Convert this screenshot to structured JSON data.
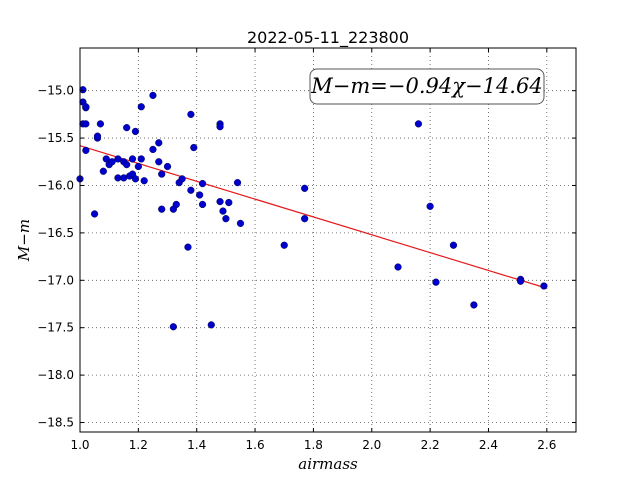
{
  "chart_data": {
    "type": "scatter",
    "title": "2022-05-11_223800",
    "xlabel": "airmass",
    "ylabel": "M−m",
    "xlim": [
      1.0,
      2.7
    ],
    "ylim": [
      -18.6,
      -14.55
    ],
    "y_inverted": true,
    "grid": true,
    "xticks": [
      1.0,
      1.2,
      1.4,
      1.6,
      1.8,
      2.0,
      2.2,
      2.4,
      2.6
    ],
    "xtick_labels": [
      "1.0",
      "1.2",
      "1.4",
      "1.6",
      "1.8",
      "2.0",
      "2.2",
      "2.4",
      "2.6"
    ],
    "yticks": [
      -15.0,
      -15.5,
      -16.0,
      -16.5,
      -17.0,
      -17.5,
      -18.0,
      -18.5
    ],
    "ytick_labels": [
      "−15.0",
      "−15.5",
      "−16.0",
      "−16.5",
      "−17.0",
      "−17.5",
      "−18.0",
      "−18.5"
    ],
    "annotation": "M−m=−0.94χ−14.64",
    "fit": {
      "slope": -0.94,
      "intercept": -14.64,
      "x_range": [
        1.0,
        2.59
      ],
      "color": "#e41a1c"
    },
    "point_color": "#0000cc",
    "points": [
      [
        1.0,
        -15.93
      ],
      [
        1.01,
        -15.12
      ],
      [
        1.01,
        -15.35
      ],
      [
        1.01,
        -14.99
      ],
      [
        1.02,
        -15.18
      ],
      [
        1.02,
        -15.35
      ],
      [
        1.02,
        -15.63
      ],
      [
        1.02,
        -15.17
      ],
      [
        1.05,
        -16.3
      ],
      [
        1.06,
        -15.5
      ],
      [
        1.06,
        -15.48
      ],
      [
        1.07,
        -15.35
      ],
      [
        1.08,
        -15.85
      ],
      [
        1.09,
        -15.72
      ],
      [
        1.1,
        -15.78
      ],
      [
        1.11,
        -15.75
      ],
      [
        1.13,
        -15.92
      ],
      [
        1.13,
        -15.72
      ],
      [
        1.15,
        -15.92
      ],
      [
        1.15,
        -15.75
      ],
      [
        1.16,
        -15.78
      ],
      [
        1.16,
        -15.39
      ],
      [
        1.17,
        -15.9
      ],
      [
        1.18,
        -15.88
      ],
      [
        1.18,
        -15.72
      ],
      [
        1.19,
        -15.43
      ],
      [
        1.19,
        -15.93
      ],
      [
        1.2,
        -15.8
      ],
      [
        1.21,
        -15.72
      ],
      [
        1.21,
        -15.17
      ],
      [
        1.22,
        -15.95
      ],
      [
        1.25,
        -15.62
      ],
      [
        1.25,
        -15.05
      ],
      [
        1.27,
        -15.75
      ],
      [
        1.27,
        -15.55
      ],
      [
        1.28,
        -16.25
      ],
      [
        1.28,
        -15.88
      ],
      [
        1.3,
        -15.8
      ],
      [
        1.32,
        -16.25
      ],
      [
        1.32,
        -17.49
      ],
      [
        1.33,
        -16.2
      ],
      [
        1.34,
        -15.97
      ],
      [
        1.35,
        -15.93
      ],
      [
        1.37,
        -16.65
      ],
      [
        1.38,
        -16.05
      ],
      [
        1.38,
        -15.25
      ],
      [
        1.39,
        -15.6
      ],
      [
        1.41,
        -16.1
      ],
      [
        1.42,
        -15.98
      ],
      [
        1.42,
        -16.2
      ],
      [
        1.45,
        -17.47
      ],
      [
        1.48,
        -15.35
      ],
      [
        1.48,
        -15.38
      ],
      [
        1.48,
        -16.17
      ],
      [
        1.49,
        -16.27
      ],
      [
        1.5,
        -16.35
      ],
      [
        1.51,
        -16.18
      ],
      [
        1.54,
        -15.97
      ],
      [
        1.55,
        -16.4
      ],
      [
        1.7,
        -16.63
      ],
      [
        1.77,
        -16.03
      ],
      [
        1.77,
        -16.35
      ],
      [
        2.09,
        -16.86
      ],
      [
        2.16,
        -15.35
      ],
      [
        2.2,
        -16.22
      ],
      [
        2.22,
        -17.02
      ],
      [
        2.28,
        -16.63
      ],
      [
        2.35,
        -17.26
      ],
      [
        2.51,
        -16.99
      ],
      [
        2.51,
        -17.01
      ],
      [
        2.59,
        -17.06
      ]
    ]
  }
}
